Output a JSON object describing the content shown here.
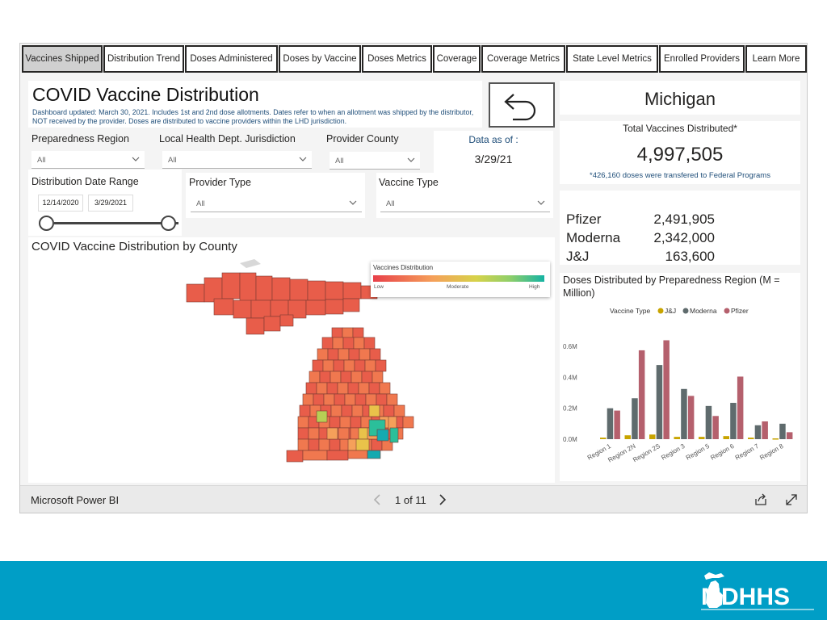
{
  "tabs": [
    {
      "label": "Vaccines Shipped",
      "active": true
    },
    {
      "label": "Distribution Trend",
      "active": false
    },
    {
      "label": "Doses Administered",
      "active": false
    },
    {
      "label": "Doses by Vaccine",
      "active": false
    },
    {
      "label": "Doses Metrics",
      "active": false
    },
    {
      "label": "Coverage",
      "active": false
    },
    {
      "label": "Coverage Metrics",
      "active": false
    },
    {
      "label": "State Level Metrics",
      "active": false
    },
    {
      "label": "Enrolled Providers",
      "active": false
    },
    {
      "label": "Learn More",
      "active": false
    }
  ],
  "header": {
    "title": "COVID Vaccine Distribution",
    "note": "Dashboard updated: March 30, 2021. Includes 1st and 2nd dose allotments. Dates refer to when an allotment was shipped by the distributor, NOT received by the provider. Doses are distributed to vaccine providers within the LHD jurisdiction."
  },
  "filters": {
    "preparedness_region": {
      "label": "Preparedness Region",
      "value": "All"
    },
    "lhd": {
      "label": "Local Health Dept. Jurisdiction",
      "value": "All"
    },
    "provider_county": {
      "label": "Provider County",
      "value": "All"
    },
    "provider_type": {
      "label": "Provider Type",
      "value": "All"
    },
    "vaccine_type": {
      "label": "Vaccine Type",
      "value": "All"
    },
    "date_range": {
      "label": "Distribution Date Range",
      "start": "12/14/2020",
      "end": "3/29/2021"
    }
  },
  "data_as_of": {
    "label": "Data as of :",
    "value": "3/29/21"
  },
  "map": {
    "title": "COVID Vaccine Distribution by County",
    "legend_title": "Vaccines Distribution",
    "legend_low": "Low",
    "legend_mid": "Moderate",
    "legend_high": "High",
    "colors": [
      "#e85d4a",
      "#f0784f",
      "#f5a05a",
      "#e9c24a",
      "#b7cf55",
      "#2bbf9a",
      "#15aab0"
    ]
  },
  "state": {
    "name": "Michigan"
  },
  "totals": {
    "label": "Total Vaccines Distributed*",
    "value": "4,997,505",
    "note": "*426,160 doses were transfered to Federal Programs"
  },
  "vendors": [
    {
      "name": "Pfizer",
      "value": "2,491,905"
    },
    {
      "name": "Moderna",
      "value": "2,342,000"
    },
    {
      "name": "J&J",
      "value": "163,600"
    }
  ],
  "chart_data": {
    "type": "bar",
    "title": "Doses Distributed by Preparedness Region (M = Million)",
    "legend_title": "Vaccine Type",
    "categories": [
      "Region 1",
      "Region 2N",
      "Region 2S",
      "Region 3",
      "Region 5",
      "Region 6",
      "Region 7",
      "Region 8"
    ],
    "series": [
      {
        "name": "J&J",
        "color": "#c8a400",
        "values": [
          0.01,
          0.025,
          0.03,
          0.015,
          0.015,
          0.02,
          0.01,
          0.005
        ]
      },
      {
        "name": "Moderna",
        "color": "#5f6b6d",
        "values": [
          0.2,
          0.265,
          0.48,
          0.325,
          0.215,
          0.235,
          0.09,
          0.1
        ]
      },
      {
        "name": "Pfizer",
        "color": "#b5606d",
        "values": [
          0.185,
          0.575,
          0.64,
          0.28,
          0.15,
          0.405,
          0.115,
          0.045
        ]
      }
    ],
    "yticks": [
      "0.0M",
      "0.2M",
      "0.4M",
      "0.6M"
    ],
    "ytick_values": [
      0,
      0.2,
      0.4,
      0.6
    ],
    "ylim": [
      0,
      0.7
    ]
  },
  "footer": {
    "product": "Microsoft Power BI",
    "page": "1 of 11"
  },
  "brand": {
    "logo_text": "MDHHS"
  }
}
